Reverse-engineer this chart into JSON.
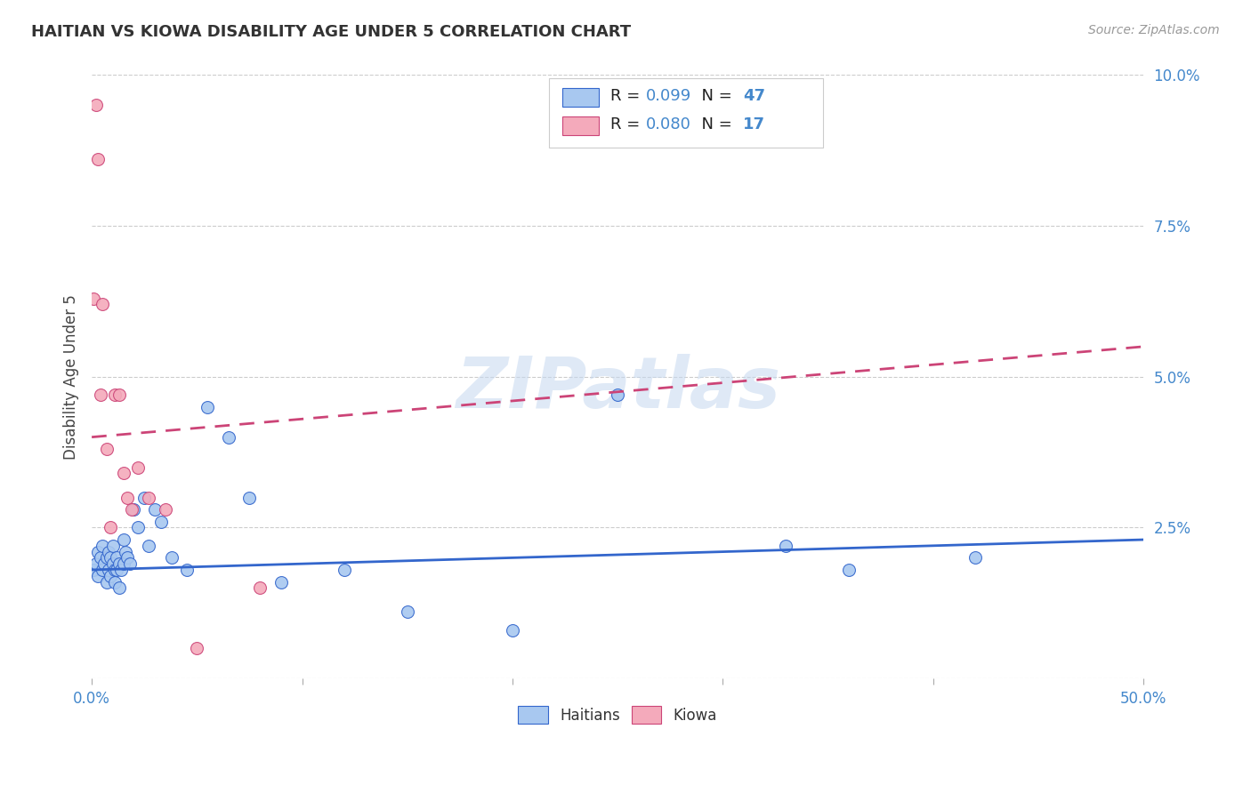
{
  "title": "HAITIAN VS KIOWA DISABILITY AGE UNDER 5 CORRELATION CHART",
  "source": "Source: ZipAtlas.com",
  "ylabel": "Disability Age Under 5",
  "watermark": "ZIPatlas",
  "xlim": [
    0.0,
    0.5
  ],
  "ylim": [
    0.0,
    0.1
  ],
  "xticks": [
    0.0,
    0.1,
    0.2,
    0.3,
    0.4,
    0.5
  ],
  "yticks": [
    0.0,
    0.025,
    0.05,
    0.075,
    0.1
  ],
  "xtick_labels_show": [
    "0.0%",
    "50.0%"
  ],
  "xtick_labels_pos": [
    0.0,
    0.5
  ],
  "ytick_labels": [
    "",
    "2.5%",
    "5.0%",
    "7.5%",
    "10.0%"
  ],
  "haitians_color": "#A8C8F0",
  "kiowa_color": "#F4AABB",
  "haitians_line_color": "#3366CC",
  "kiowa_line_color": "#CC4477",
  "background_color": "#FFFFFF",
  "grid_color": "#CCCCCC",
  "haitians_trend_y0": 0.018,
  "haitians_trend_y1": 0.023,
  "kiowa_trend_y0": 0.04,
  "kiowa_trend_y1": 0.055,
  "haitians_x": [
    0.001,
    0.002,
    0.003,
    0.003,
    0.004,
    0.005,
    0.005,
    0.006,
    0.007,
    0.007,
    0.008,
    0.008,
    0.009,
    0.009,
    0.01,
    0.01,
    0.011,
    0.011,
    0.012,
    0.012,
    0.013,
    0.013,
    0.014,
    0.015,
    0.015,
    0.016,
    0.017,
    0.018,
    0.02,
    0.022,
    0.025,
    0.027,
    0.03,
    0.033,
    0.038,
    0.045,
    0.055,
    0.065,
    0.075,
    0.09,
    0.12,
    0.15,
    0.2,
    0.25,
    0.33,
    0.36,
    0.42
  ],
  "haitians_y": [
    0.018,
    0.019,
    0.021,
    0.017,
    0.02,
    0.022,
    0.018,
    0.019,
    0.016,
    0.02,
    0.021,
    0.018,
    0.017,
    0.02,
    0.019,
    0.022,
    0.018,
    0.016,
    0.02,
    0.018,
    0.015,
    0.019,
    0.018,
    0.023,
    0.019,
    0.021,
    0.02,
    0.019,
    0.028,
    0.025,
    0.03,
    0.022,
    0.028,
    0.026,
    0.02,
    0.018,
    0.045,
    0.04,
    0.03,
    0.016,
    0.018,
    0.011,
    0.008,
    0.047,
    0.022,
    0.018,
    0.02
  ],
  "kiowa_x": [
    0.001,
    0.002,
    0.003,
    0.004,
    0.005,
    0.007,
    0.009,
    0.011,
    0.013,
    0.015,
    0.017,
    0.019,
    0.022,
    0.027,
    0.035,
    0.05,
    0.08
  ],
  "kiowa_y": [
    0.063,
    0.095,
    0.086,
    0.047,
    0.062,
    0.038,
    0.025,
    0.047,
    0.047,
    0.034,
    0.03,
    0.028,
    0.035,
    0.03,
    0.028,
    0.005,
    0.015
  ]
}
